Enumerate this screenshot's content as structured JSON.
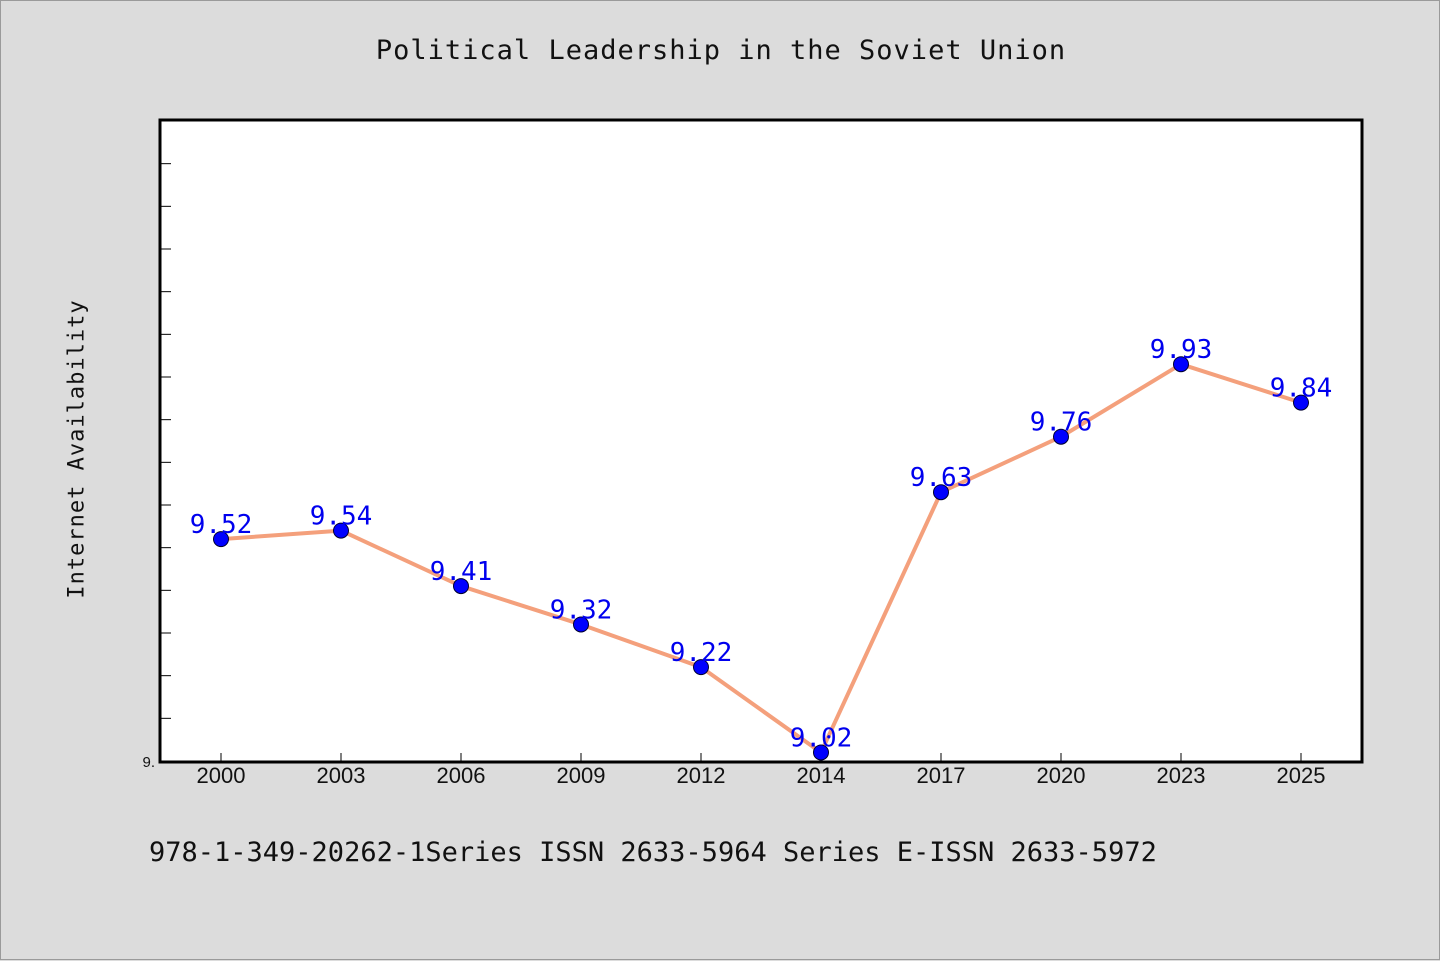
{
  "chart_data": {
    "type": "line",
    "title": "Political Leadership in the Soviet Union",
    "xlabel": "",
    "ylabel": "Internet Availability",
    "categories": [
      "2000",
      "2003",
      "2006",
      "2009",
      "2012",
      "2014",
      "2017",
      "2020",
      "2023",
      "2025"
    ],
    "series": [
      {
        "values": [
          9.52,
          9.54,
          9.41,
          9.32,
          9.22,
          9.02,
          9.63,
          9.76,
          9.93,
          9.84
        ],
        "data_labels": [
          "9.52",
          "9.54",
          "9.41",
          "9.32",
          "9.22",
          "9.02",
          "9.63",
          "9.76",
          "9.93",
          "9.84"
        ],
        "line_color": "#f4a07c",
        "marker_color": "#0000ff",
        "label_color": "#0000ee"
      }
    ],
    "ylim": [
      9.0,
      10.5
    ],
    "ytick_labels": [
      "9."
    ],
    "grid": false,
    "legend": false
  },
  "footer_text": "978-1-349-20262-1Series ISSN 2633-5964 Series E-ISSN 2633-5972"
}
